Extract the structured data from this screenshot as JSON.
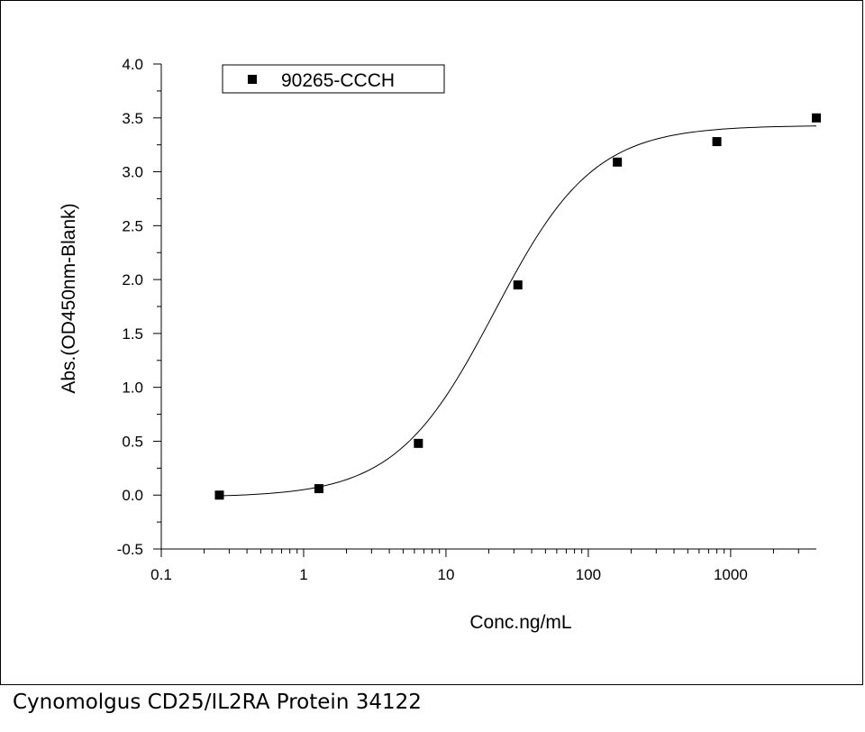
{
  "caption": "Cynomolgus CD25/IL2RA Protein 34122",
  "chart_data": {
    "type": "scatter",
    "xlabel": "Conc.ng/mL",
    "ylabel": "Abs.(OD450nm-Blank)",
    "xscale": "log",
    "xlim": [
      0.1,
      4000
    ],
    "ylim": [
      -0.5,
      4.0
    ],
    "x_ticks": [
      0.1,
      1,
      10,
      100,
      1000
    ],
    "x_tick_labels": [
      "0.1",
      "1",
      "10",
      "100",
      "1000"
    ],
    "y_ticks": [
      -0.5,
      0.0,
      0.5,
      1.0,
      1.5,
      2.0,
      2.5,
      3.0,
      3.5,
      4.0
    ],
    "y_tick_labels": [
      "-0.5",
      "0.0",
      "0.5",
      "1.0",
      "1.5",
      "2.0",
      "2.5",
      "3.0",
      "3.5",
      "4.0"
    ],
    "grid": false,
    "legend_position": "top-left",
    "series": [
      {
        "name": "90265-CCCH",
        "marker": "square",
        "color": "#000000",
        "x": [
          0.256,
          1.28,
          6.4,
          32,
          160,
          800,
          4000
        ],
        "y": [
          0.0,
          0.06,
          0.48,
          1.95,
          3.09,
          3.28,
          3.5
        ]
      }
    ],
    "fit": {
      "type": "4PL",
      "color": "#000000",
      "bottom": -0.02,
      "top": 3.43,
      "ec50": 22,
      "hill": 1.25
    }
  }
}
